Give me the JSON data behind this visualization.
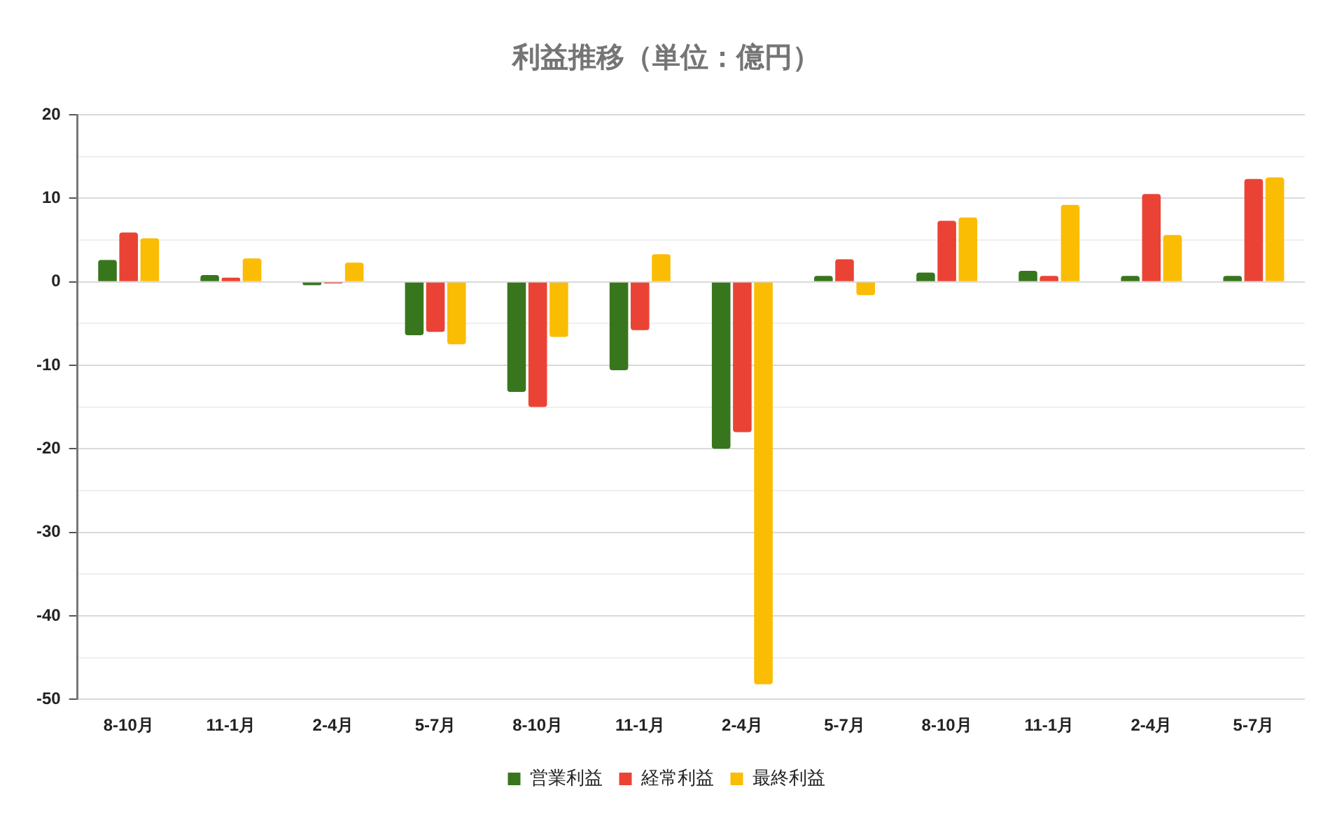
{
  "chart_data": {
    "type": "bar",
    "title": "利益推移（単位：億円）",
    "categories": [
      "8-10月",
      "11-1月",
      "2-4月",
      "5-7月",
      "8-10月",
      "11-1月",
      "2-4月",
      "5-7月",
      "8-10月",
      "11-1月",
      "2-4月",
      "5-7月"
    ],
    "series": [
      {
        "name": "営業利益",
        "color": "#38761d",
        "values": [
          2.6,
          0.8,
          -0.4,
          -6.4,
          -13.2,
          -10.6,
          -20.0,
          0.7,
          1.1,
          1.3,
          0.7,
          0.7
        ]
      },
      {
        "name": "経常利益",
        "color": "#ea4335",
        "values": [
          5.9,
          0.5,
          -0.2,
          -6.0,
          -15.0,
          -5.8,
          -18.0,
          2.7,
          7.3,
          0.7,
          10.5,
          12.3
        ]
      },
      {
        "name": "最終利益",
        "color": "#fbbc04",
        "values": [
          5.2,
          2.8,
          2.3,
          -7.5,
          -6.6,
          3.3,
          -48.2,
          -1.6,
          7.7,
          9.2,
          5.6,
          12.5
        ]
      }
    ],
    "ylim": [
      -50,
      20
    ],
    "yticks": [
      -50,
      {
        "value": -45,
        "label": null
      },
      -40,
      {
        "value": -35,
        "label": null
      },
      -30,
      {
        "value": -25,
        "label": null
      },
      -20,
      {
        "value": -15,
        "label": null
      },
      -10,
      {
        "value": -5,
        "label": null
      },
      0,
      {
        "value": 5,
        "label": null
      },
      10,
      {
        "value": 15,
        "label": null
      },
      20
    ],
    "grid": "y",
    "legend": "bottom"
  }
}
